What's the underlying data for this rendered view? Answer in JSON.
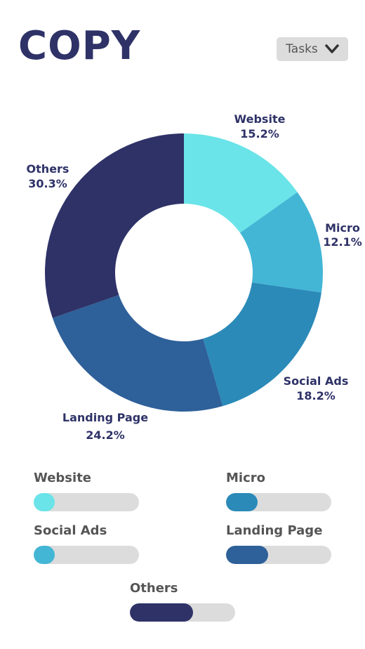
{
  "header": {
    "title": "COPY"
  },
  "dropdown": {
    "label": "Tasks",
    "icon": "chevron-down-icon"
  },
  "chart_data": {
    "type": "pie",
    "donut": true,
    "title": "",
    "categories": [
      "Website",
      "Micro",
      "Social Ads",
      "Landing Page",
      "Others"
    ],
    "values": [
      15.2,
      12.1,
      18.2,
      24.2,
      30.3
    ],
    "value_labels": [
      "15.2%",
      "12.1%",
      "18.2%",
      "24.2%",
      "30.3%"
    ],
    "colors": [
      "#6ae4e8",
      "#43b6d6",
      "#2b8ab8",
      "#2e6099",
      "#2e3267"
    ]
  },
  "progress": [
    {
      "label": "Website",
      "percent": 20,
      "color": "#6ae4e8"
    },
    {
      "label": "Micro",
      "percent": 30,
      "color": "#2b8ab8"
    },
    {
      "label": "Social Ads",
      "percent": 20,
      "color": "#43b6d6"
    },
    {
      "label": "Landing Page",
      "percent": 40,
      "color": "#2e6099"
    },
    {
      "label": "Others",
      "percent": 60,
      "color": "#2e3267"
    }
  ]
}
